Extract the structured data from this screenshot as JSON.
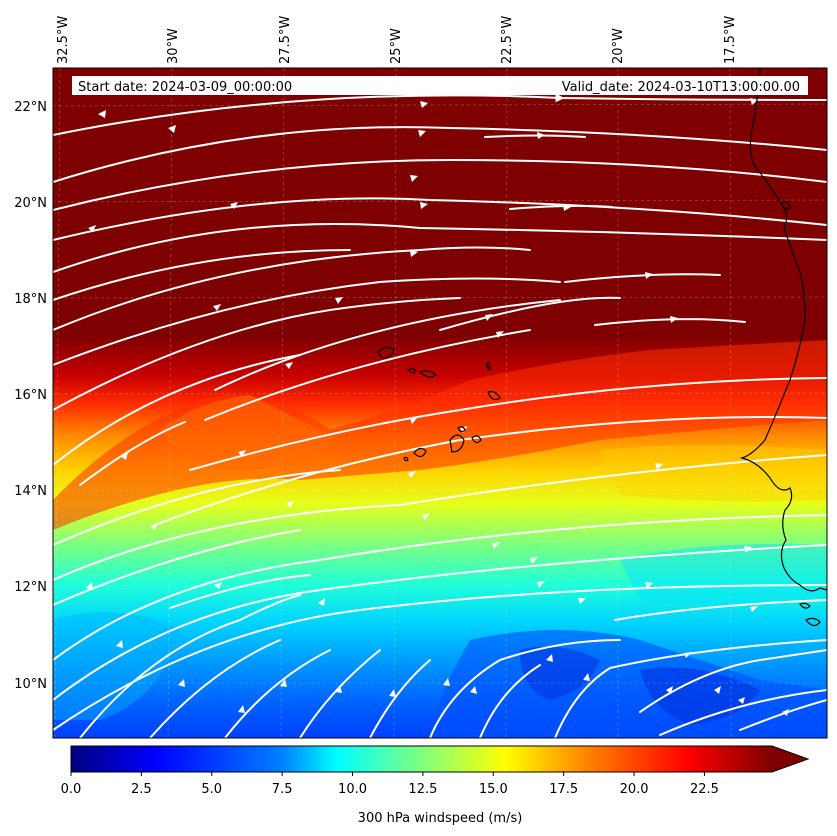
{
  "header": {
    "start_date": "Start date: 2024-03-09_00:00:00",
    "valid_date": "Valid_date: 2024-03-10T13:00:00.00"
  },
  "map": {
    "lon_labels": [
      "32.5°W",
      "30°W",
      "27.5°W",
      "25°W",
      "22.5°W",
      "20°W",
      "17.5°W"
    ],
    "lat_labels": [
      "22°N",
      "20°N",
      "18°N",
      "16°N",
      "14°N",
      "12°N",
      "10°N"
    ],
    "lon_range": [
      -33,
      -15.5
    ],
    "lat_range": [
      8.9,
      22.8
    ]
  },
  "colorbar": {
    "label": "300 hPa windspeed (m/s)",
    "ticks": [
      "0.0",
      "2.5",
      "5.0",
      "7.5",
      "10.0",
      "12.5",
      "15.0",
      "17.5",
      "20.0",
      "22.5"
    ],
    "min": 0,
    "max": 25,
    "colormap": [
      "#00007f",
      "#0000ff",
      "#007fff",
      "#00ffff",
      "#7fff7f",
      "#ffff00",
      "#ff7f00",
      "#ff0000",
      "#7f0000"
    ]
  }
}
